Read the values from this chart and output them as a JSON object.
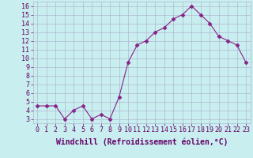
{
  "x": [
    0,
    1,
    2,
    3,
    4,
    5,
    6,
    7,
    8,
    9,
    10,
    11,
    12,
    13,
    14,
    15,
    16,
    17,
    18,
    19,
    20,
    21,
    22,
    23
  ],
  "y": [
    4.5,
    4.5,
    4.5,
    3.0,
    4.0,
    4.5,
    3.0,
    3.5,
    3.0,
    5.5,
    9.5,
    11.5,
    12.0,
    13.0,
    13.5,
    14.5,
    15.0,
    16.0,
    15.0,
    14.0,
    12.5,
    12.0,
    11.5,
    9.5
  ],
  "line_color": "#882288",
  "marker": "D",
  "marker_size": 2.5,
  "bg_color": "#c8eef0",
  "grid_color": "#b0b8d0",
  "xlabel": "Windchill (Refroidissement éolien,°C)",
  "ylabel_ticks": [
    3,
    4,
    5,
    6,
    7,
    8,
    9,
    10,
    11,
    12,
    13,
    14,
    15,
    16
  ],
  "xlim": [
    -0.5,
    23.5
  ],
  "ylim": [
    2.5,
    16.5
  ],
  "xlabel_fontsize": 7.0,
  "tick_fontsize": 6.0,
  "label_color": "#660066"
}
